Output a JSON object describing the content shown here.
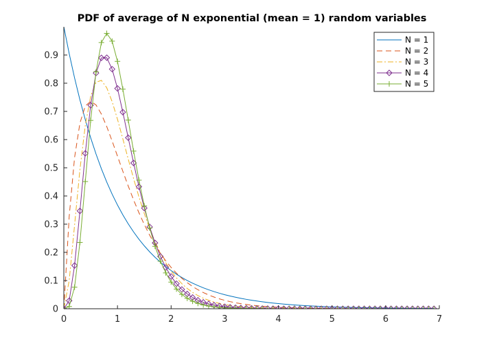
{
  "chart_data": {
    "type": "line",
    "title": "PDF of average of N exponential (mean = 1) random variables",
    "xlabel": "",
    "ylabel": "",
    "xlim": [
      0,
      7
    ],
    "ylim": [
      0,
      1
    ],
    "xticks": [
      "0",
      "1",
      "2",
      "3",
      "4",
      "5",
      "6",
      "7"
    ],
    "yticks": [
      "0",
      "0.1",
      "0.2",
      "0.3",
      "0.4",
      "0.5",
      "0.6",
      "0.7",
      "0.8",
      "0.9"
    ],
    "grid": false,
    "legend_location": "top-right",
    "series": [
      {
        "name": "N = 1",
        "N": 1,
        "color": "#0072BD",
        "line_style": "solid",
        "marker": "none"
      },
      {
        "name": "N = 2",
        "N": 2,
        "color": "#D95319",
        "line_style": "dashed",
        "marker": "none"
      },
      {
        "name": "N = 3",
        "N": 3,
        "color": "#EDB120",
        "line_style": "dash-dot",
        "marker": "none"
      },
      {
        "name": "N = 4",
        "N": 4,
        "color": "#7E2F8E",
        "line_style": "solid",
        "marker": "diamond"
      },
      {
        "name": "N = 5",
        "N": 5,
        "color": "#77AC30",
        "line_style": "solid",
        "marker": "plus"
      }
    ],
    "x_sample_step": 0.1,
    "x_sample_range": [
      0,
      6.9
    ]
  }
}
